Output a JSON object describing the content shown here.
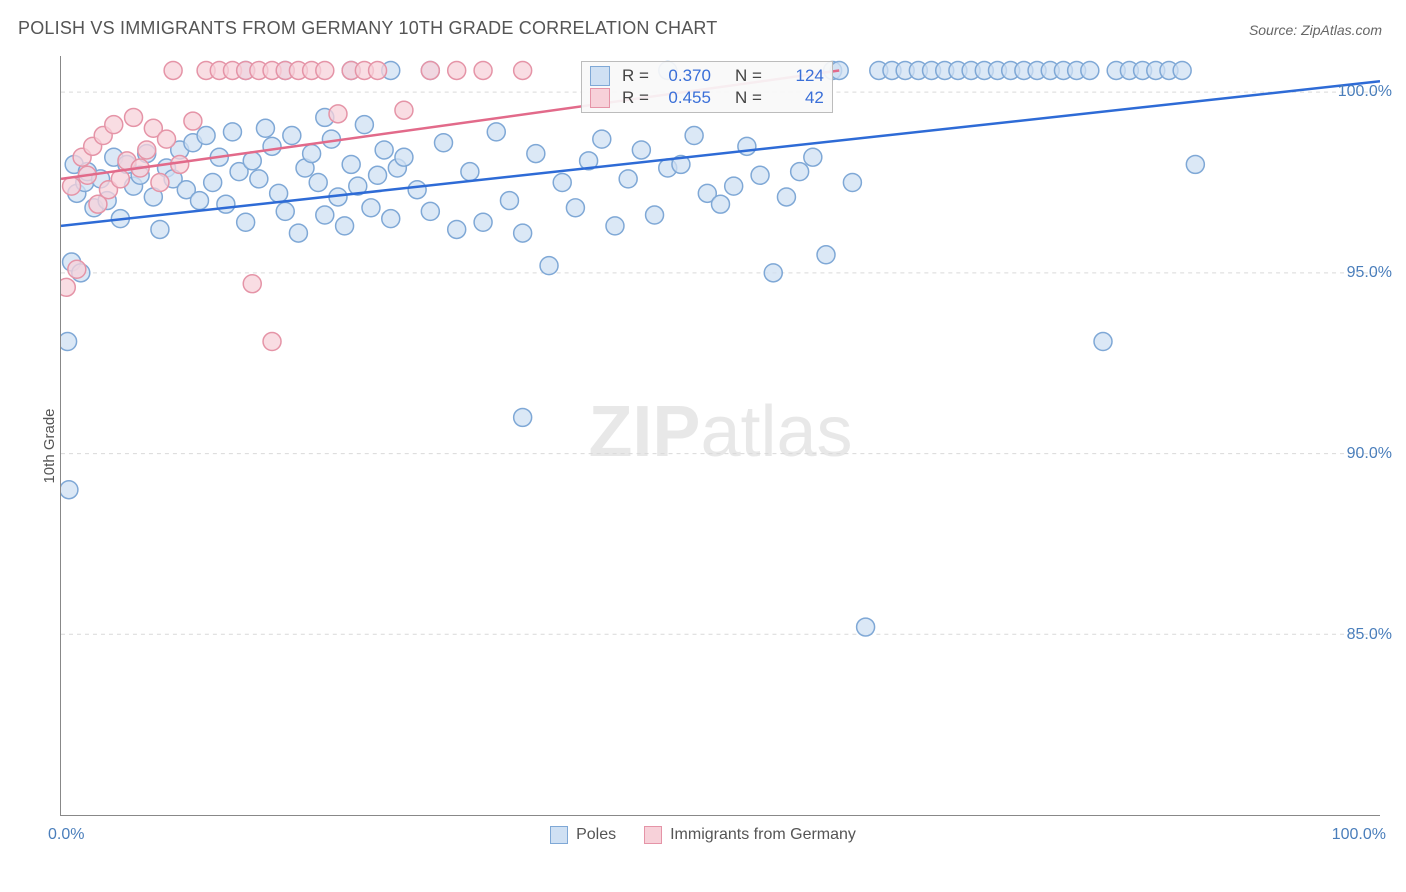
{
  "title": "POLISH VS IMMIGRANTS FROM GERMANY 10TH GRADE CORRELATION CHART",
  "source": "Source: ZipAtlas.com",
  "ylabel": "10th Grade",
  "watermark_zip": "ZIP",
  "watermark_atlas": "atlas",
  "chart": {
    "type": "scatter",
    "xlim": [
      0,
      100
    ],
    "ylim": [
      80,
      101
    ],
    "yticks": [
      85,
      90,
      95,
      100
    ],
    "ytick_labels": [
      "85.0%",
      "90.0%",
      "95.0%",
      "100.0%"
    ],
    "xticks": [
      0,
      10,
      20,
      30,
      40,
      50,
      60,
      70,
      80,
      90,
      100
    ],
    "xtick_label_left": "0.0%",
    "xtick_label_right": "100.0%",
    "grid_color": "#d9d9d9",
    "background_color": "#ffffff",
    "axis_color": "#888888",
    "marker_radius": 9,
    "marker_stroke_width": 1.5,
    "line_width": 2.5,
    "series": [
      {
        "name": "Poles",
        "fill": "#cfe0f3",
        "stroke": "#7fa8d6",
        "line_color": "#2e6bd6",
        "trend": {
          "x1": 0,
          "y1": 96.3,
          "x2": 100,
          "y2": 100.3
        },
        "stats": {
          "R": "0.370",
          "N": "124"
        },
        "points": [
          [
            0.5,
            93.1
          ],
          [
            0.8,
            95.3
          ],
          [
            1.0,
            98.0
          ],
          [
            1.2,
            97.2
          ],
          [
            1.5,
            95.0
          ],
          [
            1.8,
            97.5
          ],
          [
            0.6,
            89.0
          ],
          [
            2.0,
            97.8
          ],
          [
            2.5,
            96.8
          ],
          [
            3.0,
            97.6
          ],
          [
            3.5,
            97.0
          ],
          [
            4.0,
            98.2
          ],
          [
            4.5,
            96.5
          ],
          [
            5.0,
            98.0
          ],
          [
            5.5,
            97.4
          ],
          [
            6.0,
            97.7
          ],
          [
            6.5,
            98.3
          ],
          [
            7.0,
            97.1
          ],
          [
            7.5,
            96.2
          ],
          [
            8.0,
            97.9
          ],
          [
            8.5,
            97.6
          ],
          [
            9.0,
            98.4
          ],
          [
            9.5,
            97.3
          ],
          [
            10.0,
            98.6
          ],
          [
            10.5,
            97.0
          ],
          [
            11.0,
            98.8
          ],
          [
            11.5,
            97.5
          ],
          [
            12.0,
            98.2
          ],
          [
            12.5,
            96.9
          ],
          [
            13.0,
            98.9
          ],
          [
            13.5,
            97.8
          ],
          [
            14.0,
            96.4
          ],
          [
            14.5,
            98.1
          ],
          [
            15.0,
            97.6
          ],
          [
            15.5,
            99.0
          ],
          [
            16.0,
            98.5
          ],
          [
            16.5,
            97.2
          ],
          [
            17.0,
            96.7
          ],
          [
            17.5,
            98.8
          ],
          [
            18.0,
            96.1
          ],
          [
            18.5,
            97.9
          ],
          [
            19.0,
            98.3
          ],
          [
            19.5,
            97.5
          ],
          [
            20.0,
            96.6
          ],
          [
            20.5,
            98.7
          ],
          [
            21.0,
            97.1
          ],
          [
            21.5,
            96.3
          ],
          [
            22.0,
            98.0
          ],
          [
            22.5,
            97.4
          ],
          [
            23.0,
            99.1
          ],
          [
            23.5,
            96.8
          ],
          [
            24.0,
            97.7
          ],
          [
            24.5,
            98.4
          ],
          [
            25.0,
            96.5
          ],
          [
            25.5,
            97.9
          ],
          [
            26.0,
            98.2
          ],
          [
            27.0,
            97.3
          ],
          [
            28.0,
            96.7
          ],
          [
            29.0,
            98.6
          ],
          [
            30.0,
            96.2
          ],
          [
            31.0,
            97.8
          ],
          [
            32.0,
            96.4
          ],
          [
            33.0,
            98.9
          ],
          [
            34.0,
            97.0
          ],
          [
            35.0,
            96.1
          ],
          [
            36.0,
            98.3
          ],
          [
            37.0,
            95.2
          ],
          [
            38.0,
            97.5
          ],
          [
            39.0,
            96.8
          ],
          [
            40.0,
            98.1
          ],
          [
            41.0,
            98.7
          ],
          [
            42.0,
            96.3
          ],
          [
            43.0,
            97.6
          ],
          [
            44.0,
            98.4
          ],
          [
            45.0,
            96.6
          ],
          [
            46.0,
            97.9
          ],
          [
            47.0,
            98.0
          ],
          [
            48.0,
            98.8
          ],
          [
            49.0,
            97.2
          ],
          [
            50.0,
            96.9
          ],
          [
            51.0,
            97.4
          ],
          [
            52.0,
            98.5
          ],
          [
            53.0,
            97.7
          ],
          [
            54.0,
            95.0
          ],
          [
            55.0,
            97.1
          ],
          [
            56.0,
            97.8
          ],
          [
            57.0,
            98.2
          ],
          [
            58.0,
            95.5
          ],
          [
            58.5,
            100.6
          ],
          [
            59.0,
            100.6
          ],
          [
            60.0,
            97.5
          ],
          [
            61.0,
            85.2
          ],
          [
            62.0,
            100.6
          ],
          [
            63.0,
            100.6
          ],
          [
            64.0,
            100.6
          ],
          [
            65.0,
            100.6
          ],
          [
            66.0,
            100.6
          ],
          [
            67.0,
            100.6
          ],
          [
            68.0,
            100.6
          ],
          [
            69.0,
            100.6
          ],
          [
            70.0,
            100.6
          ],
          [
            71.0,
            100.6
          ],
          [
            72.0,
            100.6
          ],
          [
            73.0,
            100.6
          ],
          [
            74.0,
            100.6
          ],
          [
            75.0,
            100.6
          ],
          [
            76.0,
            100.6
          ],
          [
            77.0,
            100.6
          ],
          [
            78.0,
            100.6
          ],
          [
            79.0,
            93.1
          ],
          [
            80.0,
            100.6
          ],
          [
            81.0,
            100.6
          ],
          [
            82.0,
            100.6
          ],
          [
            83.0,
            100.6
          ],
          [
            84.0,
            100.6
          ],
          [
            85.0,
            100.6
          ],
          [
            86.0,
            98.0
          ],
          [
            14.0,
            100.6
          ],
          [
            17.0,
            100.6
          ],
          [
            22.0,
            100.6
          ],
          [
            25.0,
            100.6
          ],
          [
            28.0,
            100.6
          ],
          [
            35.0,
            91.0
          ],
          [
            46.0,
            100.6
          ],
          [
            20.0,
            99.3
          ]
        ]
      },
      {
        "name": "Immigrants from Germany",
        "fill": "#f7d1d9",
        "stroke": "#e594a7",
        "line_color": "#e26a8a",
        "trend": {
          "x1": 0,
          "y1": 97.6,
          "x2": 59,
          "y2": 100.6
        },
        "stats": {
          "R": "0.455",
          "N": "42"
        },
        "points": [
          [
            0.4,
            94.6
          ],
          [
            0.8,
            97.4
          ],
          [
            1.2,
            95.1
          ],
          [
            1.6,
            98.2
          ],
          [
            2.0,
            97.7
          ],
          [
            2.4,
            98.5
          ],
          [
            2.8,
            96.9
          ],
          [
            3.2,
            98.8
          ],
          [
            3.6,
            97.3
          ],
          [
            4.0,
            99.1
          ],
          [
            4.5,
            97.6
          ],
          [
            5.0,
            98.1
          ],
          [
            5.5,
            99.3
          ],
          [
            6.0,
            97.9
          ],
          [
            6.5,
            98.4
          ],
          [
            7.0,
            99.0
          ],
          [
            7.5,
            97.5
          ],
          [
            8.0,
            98.7
          ],
          [
            8.5,
            100.6
          ],
          [
            9.0,
            98.0
          ],
          [
            10.0,
            99.2
          ],
          [
            11.0,
            100.6
          ],
          [
            12.0,
            100.6
          ],
          [
            13.0,
            100.6
          ],
          [
            14.0,
            100.6
          ],
          [
            15.0,
            100.6
          ],
          [
            16.0,
            100.6
          ],
          [
            17.0,
            100.6
          ],
          [
            18.0,
            100.6
          ],
          [
            14.5,
            94.7
          ],
          [
            16.0,
            93.1
          ],
          [
            19.0,
            100.6
          ],
          [
            20.0,
            100.6
          ],
          [
            21.0,
            99.4
          ],
          [
            22.0,
            100.6
          ],
          [
            23.0,
            100.6
          ],
          [
            24.0,
            100.6
          ],
          [
            26.0,
            99.5
          ],
          [
            28.0,
            100.6
          ],
          [
            30.0,
            100.6
          ],
          [
            32.0,
            100.6
          ],
          [
            35.0,
            100.6
          ]
        ]
      }
    ]
  },
  "legend": {
    "label1": "Poles",
    "label2": "Immigrants from Germany"
  },
  "statbox": {
    "r_label": "R =",
    "n_label": "N ="
  }
}
